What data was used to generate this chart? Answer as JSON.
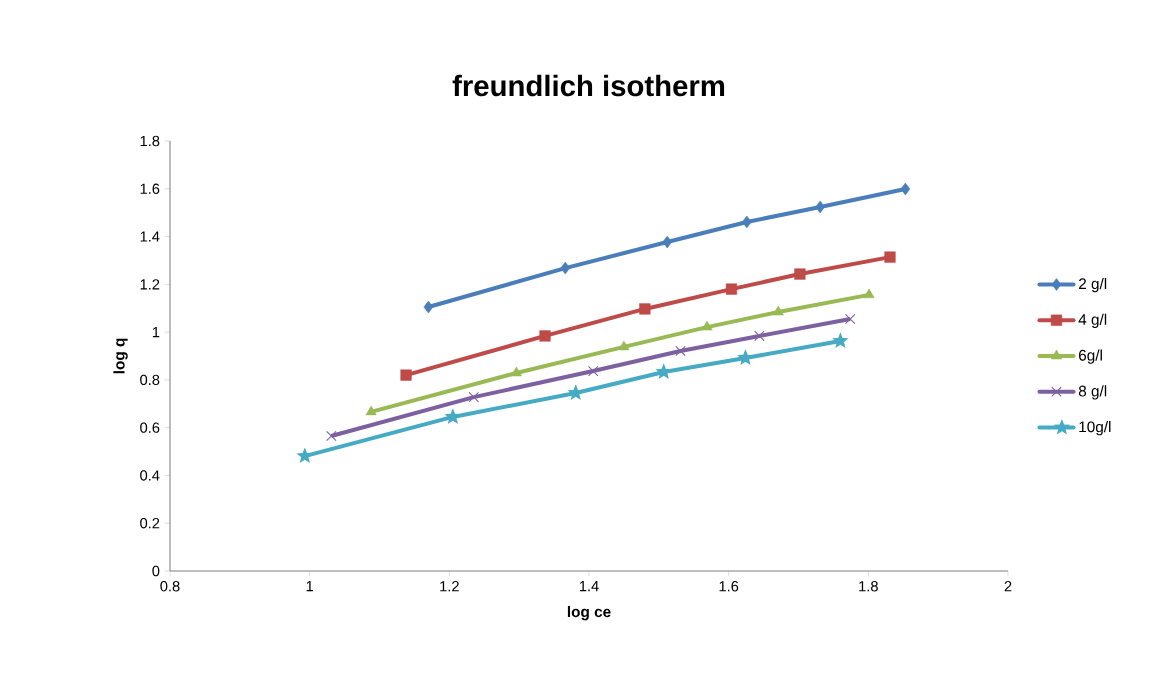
{
  "chart_data": {
    "type": "line",
    "title": "freundlich isotherm",
    "xlabel": "log ce",
    "ylabel": "log q",
    "xlim": [
      0.8,
      2
    ],
    "xticks": [
      0.8,
      1,
      1.2,
      1.4,
      1.6,
      1.8,
      2
    ],
    "ylim": [
      0,
      1.8
    ],
    "yticks": [
      0,
      0.2,
      0.4,
      0.6,
      0.8,
      1,
      1.2,
      1.4,
      1.6,
      1.8
    ],
    "grid": false,
    "legend": "right",
    "line_style": "solid",
    "series": [
      {
        "name": "2 g/l",
        "color": "#4a7ebb",
        "marker": "diamond",
        "x": [
          1.17,
          1.366,
          1.512,
          1.626,
          1.731,
          1.853
        ],
        "values": [
          1.105,
          1.268,
          1.377,
          1.461,
          1.524,
          1.599
        ]
      },
      {
        "name": "4 g/l",
        "color": "#be4b48",
        "marker": "square",
        "x": [
          1.138,
          1.337,
          1.48,
          1.604,
          1.702,
          1.831
        ],
        "values": [
          0.82,
          0.984,
          1.097,
          1.18,
          1.243,
          1.314
        ]
      },
      {
        "name": "6g/l",
        "color": "#98b954",
        "marker": "triangle",
        "x": [
          1.088,
          1.296,
          1.45,
          1.569,
          1.671,
          1.801
        ],
        "values": [
          0.666,
          0.829,
          0.938,
          1.021,
          1.084,
          1.156
        ]
      },
      {
        "name": "8 g/l",
        "color": "#7d60a0",
        "marker": "cross",
        "x": [
          1.031,
          1.235,
          1.406,
          1.531,
          1.644,
          1.774
        ],
        "values": [
          0.565,
          0.728,
          0.837,
          0.921,
          0.984,
          1.055
        ]
      },
      {
        "name": "10g/l",
        "color": "#46aac5",
        "marker": "star",
        "x": [
          0.993,
          1.205,
          1.381,
          1.507,
          1.624,
          1.76
        ],
        "values": [
          0.481,
          0.645,
          0.745,
          0.833,
          0.892,
          0.963
        ]
      }
    ]
  }
}
